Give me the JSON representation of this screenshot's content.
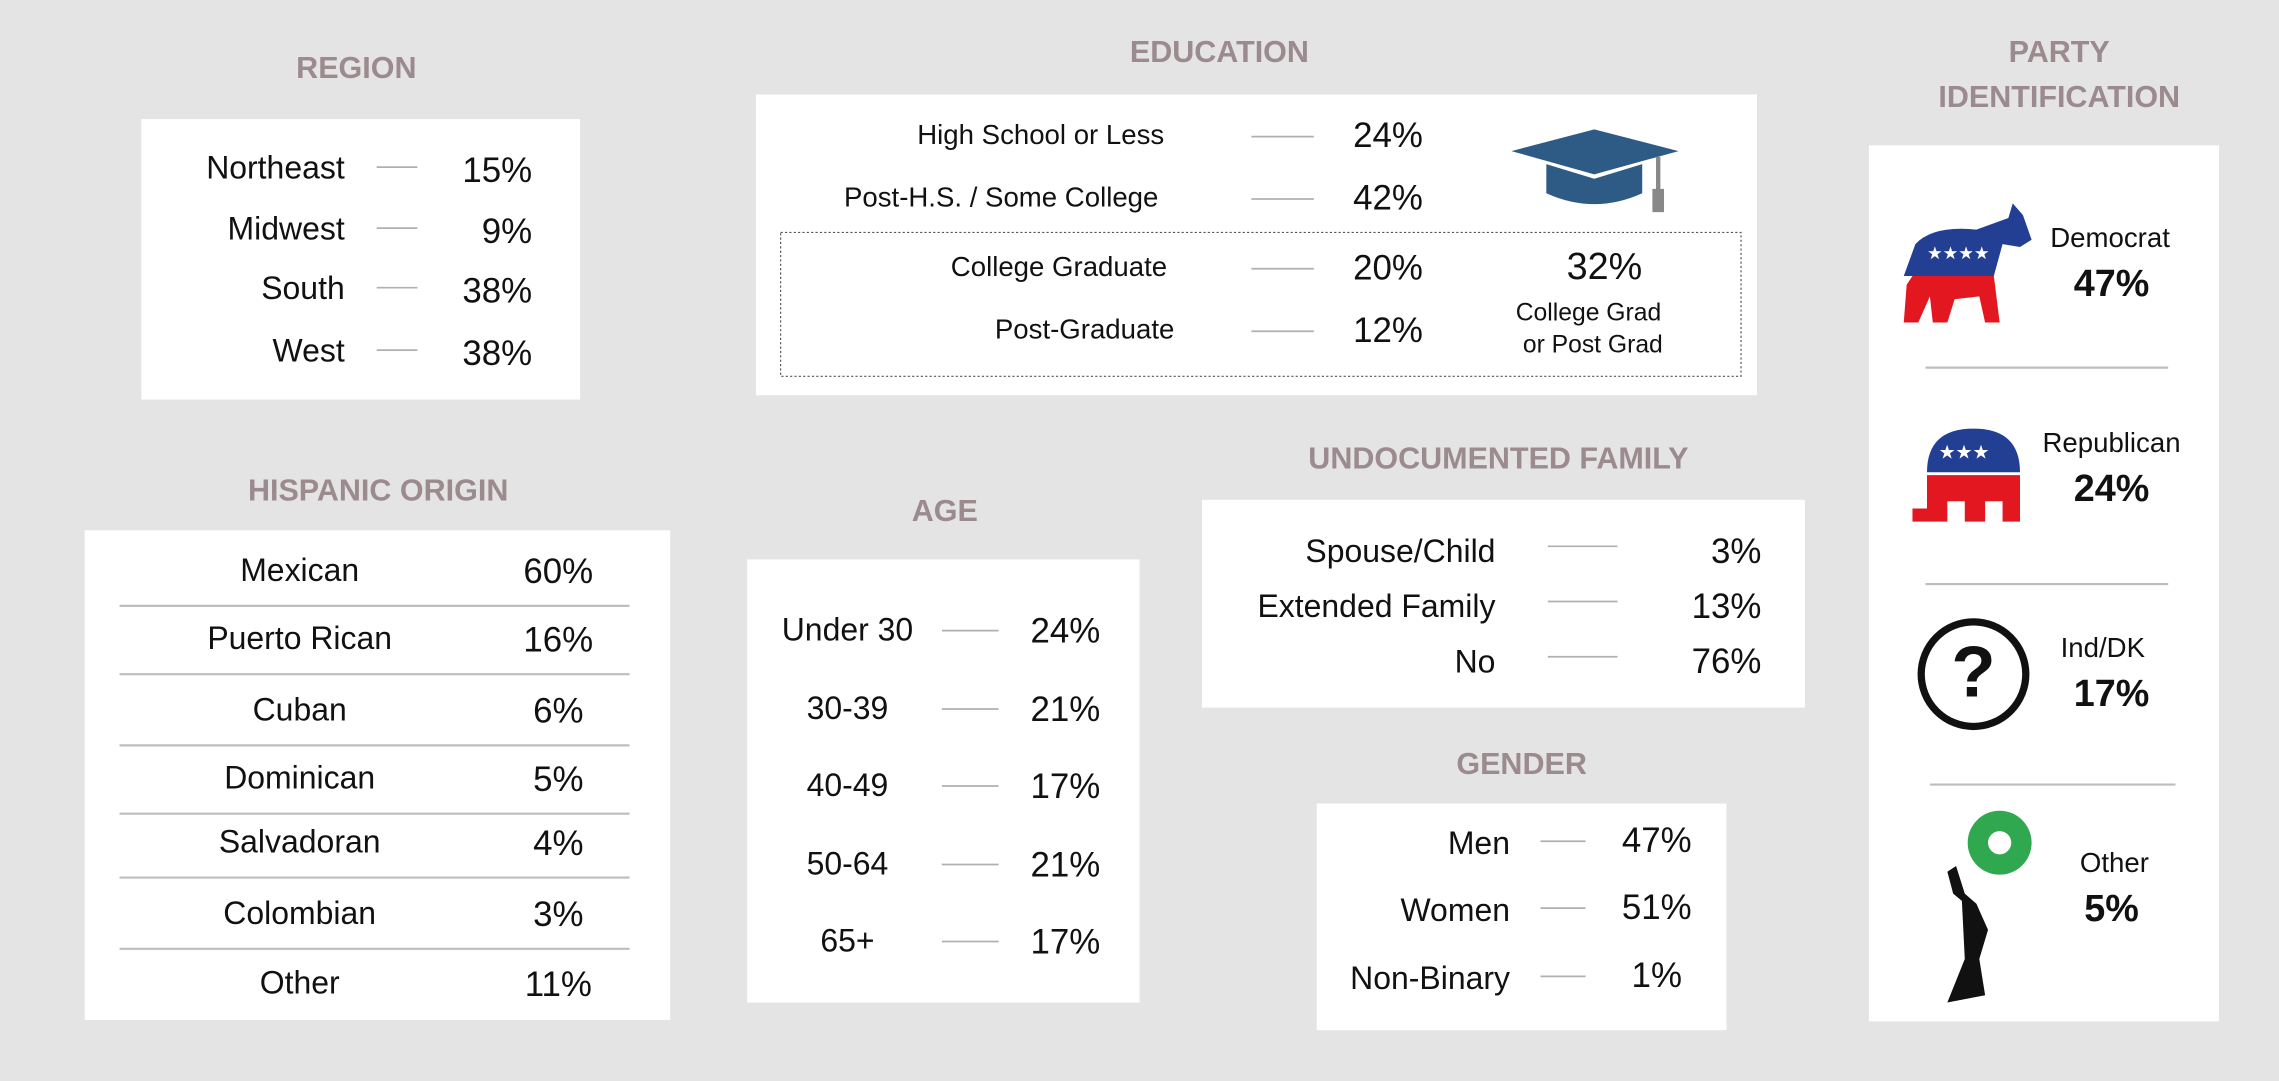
{
  "region": {
    "title": "REGION",
    "rows": [
      {
        "label": "Northeast",
        "value": "15%"
      },
      {
        "label": "Midwest",
        "value": "9%"
      },
      {
        "label": "South",
        "value": "38%"
      },
      {
        "label": "West",
        "value": "38%"
      }
    ]
  },
  "education": {
    "title": "EDUCATION",
    "rows": [
      {
        "label": "High School or Less",
        "value": "24%"
      },
      {
        "label": "Post-H.S. / Some College",
        "value": "42%"
      },
      {
        "label": "College Graduate",
        "value": "20%"
      },
      {
        "label": "Post-Graduate",
        "value": "12%"
      }
    ],
    "combined": {
      "value": "32%",
      "label_lines": [
        "College Grad",
        "or Post Grad"
      ]
    }
  },
  "party": {
    "title_lines": [
      "PARTY",
      "IDENTIFICATION"
    ],
    "rows": [
      {
        "label": "Democrat",
        "value": "47%"
      },
      {
        "label": "Republican",
        "value": "24%"
      },
      {
        "label": "Ind/DK",
        "value": "17%"
      },
      {
        "label": "Other",
        "value": "5%"
      }
    ]
  },
  "hispanic_origin": {
    "title": "HISPANIC ORIGIN",
    "rows": [
      {
        "label": "Mexican",
        "value": "60%"
      },
      {
        "label": "Puerto Rican",
        "value": "16%"
      },
      {
        "label": "Cuban",
        "value": "6%"
      },
      {
        "label": "Dominican",
        "value": "5%"
      },
      {
        "label": "Salvadoran",
        "value": "4%"
      },
      {
        "label": "Colombian",
        "value": "3%"
      },
      {
        "label": "Other",
        "value": "11%"
      }
    ]
  },
  "age": {
    "title": "AGE",
    "rows": [
      {
        "label": "Under 30",
        "value": "24%"
      },
      {
        "label": "30-39",
        "value": "21%"
      },
      {
        "label": "40-49",
        "value": "17%"
      },
      {
        "label": "50-64",
        "value": "21%"
      },
      {
        "label": "65+",
        "value": "17%"
      }
    ]
  },
  "undocumented_family": {
    "title": "UNDOCUMENTED FAMILY",
    "rows": [
      {
        "label": "Spouse/Child",
        "value": "3%"
      },
      {
        "label": "Extended Family",
        "value": "13%"
      },
      {
        "label": "No",
        "value": "76%"
      }
    ]
  },
  "gender": {
    "title": "GENDER",
    "rows": [
      {
        "label": "Men",
        "value": "47%"
      },
      {
        "label": "Women",
        "value": "51%"
      },
      {
        "label": "Non-Binary",
        "value": "1%"
      }
    ]
  }
}
